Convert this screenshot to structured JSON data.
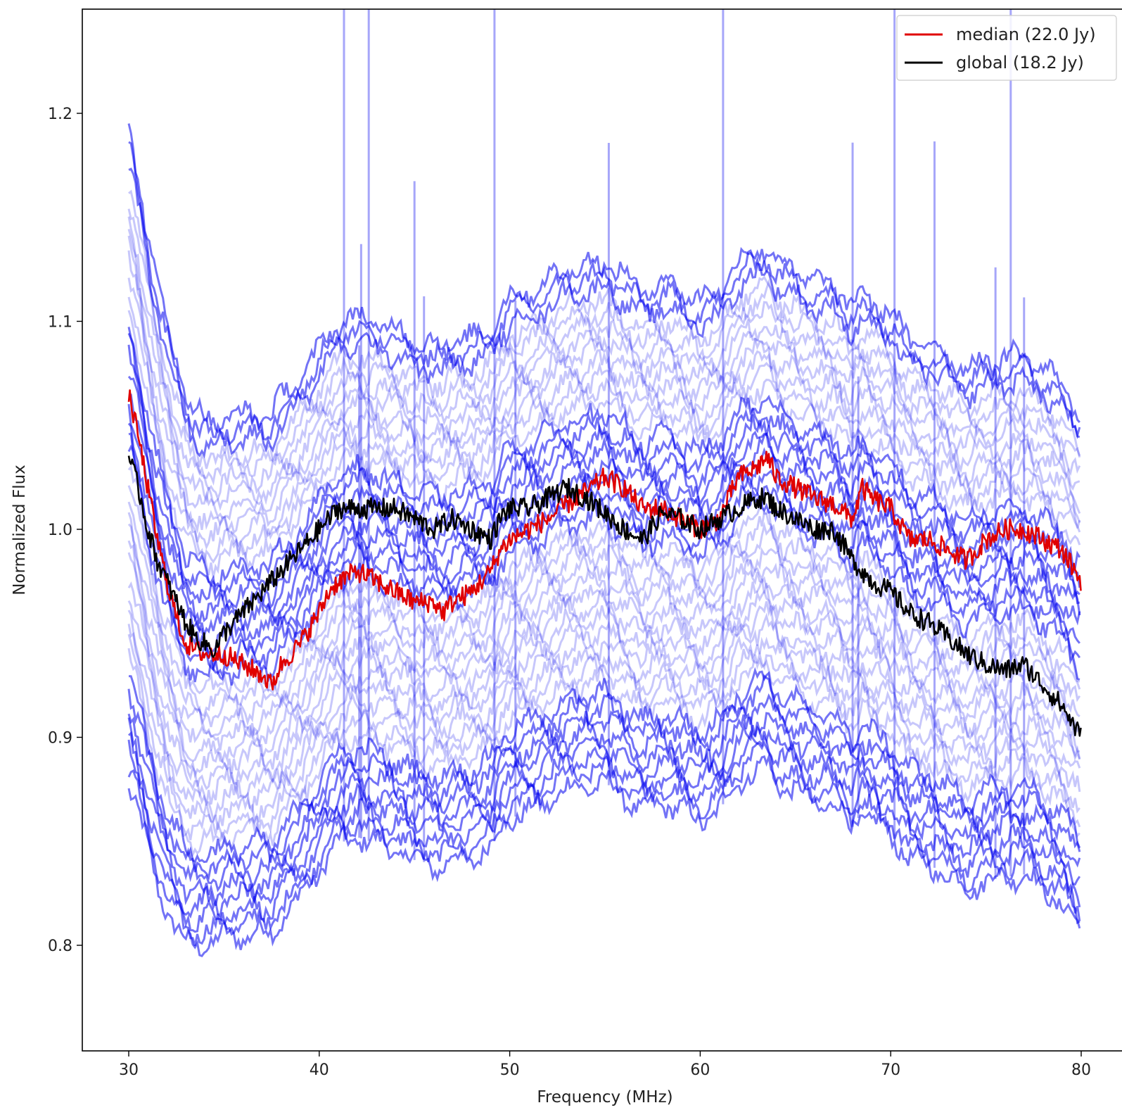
{
  "chart_data": {
    "type": "line",
    "title": "",
    "xlabel": "Frequency (MHz)",
    "ylabel": "Normalized Flux",
    "xlim": [
      27.5,
      82.5
    ],
    "ylim": [
      0.75,
      1.25
    ],
    "xticks": [
      30,
      40,
      50,
      60,
      70,
      80
    ],
    "xtick_labels": [
      "30",
      "40",
      "50",
      "60",
      "70",
      "80"
    ],
    "yticks": [
      0.8,
      0.9,
      1.0,
      1.1,
      1.2
    ],
    "ytick_labels": [
      "0.8",
      "0.9",
      "1.0",
      "1.1",
      "1.2"
    ],
    "grid": false,
    "legend_position": "top-right",
    "legend": [
      {
        "label": "median (22.0 Jy)",
        "color": "#e00000"
      },
      {
        "label": "global (18.2 Jy)",
        "color": "#000000"
      }
    ],
    "background_spectra": {
      "color": "#0000ee",
      "description_count": 42,
      "offset_range": [
        -0.14,
        0.11
      ],
      "spike_frequencies": [
        41.3,
        42.1,
        42.2,
        42.6,
        45.0,
        45.5,
        49.2,
        50.3,
        55.2,
        61.2,
        68.0,
        68.3,
        70.2,
        72.3,
        75.5,
        76.3,
        77.0
      ]
    },
    "series": [
      {
        "name": "median (22.0 Jy)",
        "color": "#e00000",
        "x": [
          30,
          30.5,
          31,
          31.5,
          32,
          32.5,
          33,
          33.5,
          34,
          35,
          36,
          37,
          37.5,
          38,
          39,
          40,
          40.5,
          41,
          42,
          43,
          44,
          45,
          46,
          46.5,
          47,
          48,
          49,
          49.5,
          50,
          51,
          52,
          53,
          54,
          55,
          56,
          57,
          58,
          59,
          60,
          61,
          62,
          63,
          63.5,
          64,
          65,
          66,
          67,
          68,
          68.5,
          69,
          70,
          71,
          72,
          73,
          74,
          75,
          76,
          77,
          78,
          79,
          80
        ],
        "y": [
          1.065,
          1.045,
          1.02,
          0.995,
          0.975,
          0.958,
          0.945,
          0.942,
          0.94,
          0.94,
          0.935,
          0.93,
          0.925,
          0.935,
          0.945,
          0.96,
          0.97,
          0.975,
          0.98,
          0.975,
          0.97,
          0.965,
          0.965,
          0.96,
          0.965,
          0.97,
          0.98,
          0.99,
          0.995,
          1.0,
          1.005,
          1.012,
          1.018,
          1.025,
          1.02,
          1.01,
          1.01,
          1.005,
          1.0,
          1.005,
          1.025,
          1.03,
          1.035,
          1.025,
          1.02,
          1.015,
          1.012,
          1.005,
          1.02,
          1.015,
          1.01,
          0.995,
          0.995,
          0.99,
          0.985,
          0.995,
          1.0,
          1.0,
          0.995,
          0.99,
          0.975
        ]
      },
      {
        "name": "global (18.2 Jy)",
        "color": "#000000",
        "x": [
          30,
          30.5,
          31,
          31.5,
          32,
          32.5,
          33,
          33.5,
          34,
          34.5,
          35,
          36,
          37,
          38,
          39,
          40,
          40.5,
          41,
          42,
          43,
          44,
          45,
          46,
          47,
          48,
          49,
          49.5,
          50,
          51,
          52,
          53,
          54,
          55,
          56,
          57,
          58,
          59,
          60,
          61,
          62,
          63,
          63.5,
          64,
          65,
          66,
          67,
          68,
          69,
          70,
          71,
          72,
          73,
          74,
          75,
          76,
          77,
          78,
          79,
          80
        ],
        "y": [
          1.035,
          1.02,
          1.0,
          0.985,
          0.975,
          0.965,
          0.955,
          0.948,
          0.945,
          0.942,
          0.95,
          0.96,
          0.97,
          0.98,
          0.99,
          1.0,
          1.005,
          1.01,
          1.01,
          1.01,
          1.01,
          1.005,
          1.0,
          1.005,
          1.0,
          0.995,
          1.005,
          1.01,
          1.01,
          1.015,
          1.02,
          1.015,
          1.008,
          1.0,
          0.995,
          1.008,
          1.005,
          1.0,
          1.005,
          1.01,
          1.015,
          1.015,
          1.01,
          1.005,
          1.0,
          1.0,
          0.985,
          0.975,
          0.97,
          0.96,
          0.955,
          0.948,
          0.94,
          0.935,
          0.932,
          0.935,
          0.925,
          0.915,
          0.9
        ]
      }
    ]
  }
}
